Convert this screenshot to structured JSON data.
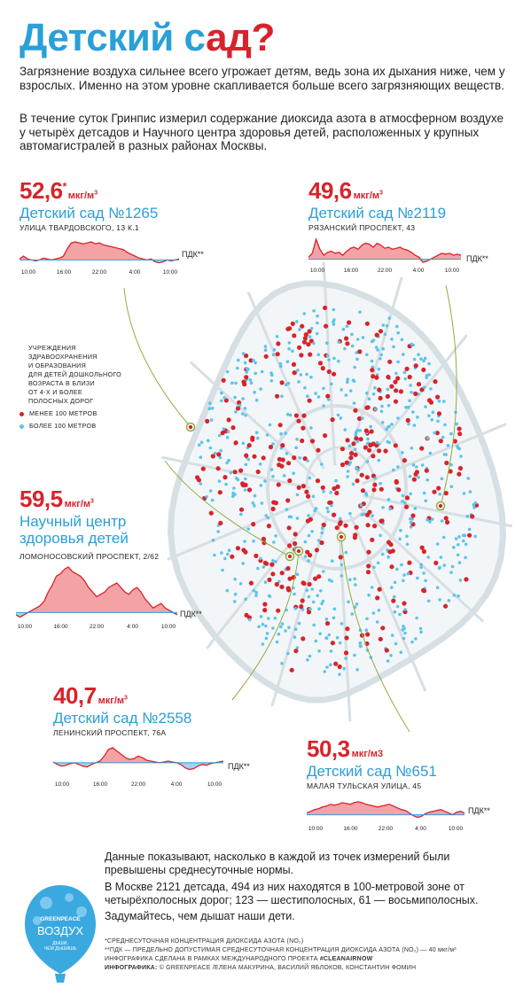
{
  "title": {
    "part1": "Детский с",
    "part2": "ад?"
  },
  "intro": {
    "p1": "Загрязнение воздуха сильнее всего угрожает детям, ведь зона их дыхания ниже, чем у взрослых. Именно на этом уровне скапливается больше всего загрязняющих веществ.",
    "p2": "В течение суток Гринпис измерил содержание диоксида азота в атмосферном воздухе у четырёх детсадов и Научного центра здоровья детей, расположенных у крупных автомагистралей в разных районах Москвы."
  },
  "unit": "мкг/м",
  "unit_sup": "3",
  "pdk_label": "ПДК**",
  "sites": [
    {
      "value": "52,6",
      "value_mark": "*",
      "name": "Детский сад №1265",
      "address": "УЛИЦА ТВАРДОВСКОГО, 13 К.1",
      "ticks": [
        "10:00",
        "16:00",
        "22:00",
        "4:00",
        "10:00"
      ],
      "series": [
        0.05,
        0.2,
        0.05,
        0.0,
        -0.05,
        0.0,
        0.1,
        0.05,
        0.0,
        0.05,
        0.1,
        0.2,
        0.6,
        0.9,
        0.95,
        0.9,
        0.85,
        0.9,
        0.95,
        0.85,
        0.9,
        0.8,
        0.75,
        0.7,
        0.65,
        0.6,
        0.55,
        0.4,
        0.3,
        0.2,
        0.1,
        0.05,
        0.0,
        0.05,
        -0.1,
        -0.15,
        -0.1,
        0.0,
        -0.05,
        0.0,
        0.05
      ]
    },
    {
      "value": "49,6",
      "value_mark": "",
      "name": "Детский сад №2119",
      "address": "РЯЗАНСКИЙ ПРОСПЕКТ, 43",
      "ticks": [
        "10:00",
        "16:00",
        "22:00",
        "4:00",
        "10:00"
      ],
      "series": [
        0.1,
        0.3,
        1.0,
        0.5,
        0.2,
        0.35,
        0.4,
        0.3,
        0.35,
        0.2,
        0.4,
        0.55,
        0.6,
        0.5,
        0.7,
        0.8,
        0.75,
        0.6,
        0.8,
        0.7,
        0.55,
        0.6,
        0.5,
        0.55,
        0.6,
        0.5,
        0.45,
        0.35,
        0.2,
        0.1,
        -0.15,
        -0.1,
        0.0,
        0.1,
        0.2,
        0.3,
        0.25,
        0.3,
        0.2,
        0.25,
        0.2
      ]
    },
    {
      "value": "59,5",
      "value_mark": "",
      "name_line1": "Научный центр",
      "name_line2": "здоровья детей",
      "address": "ЛОМОНОСОВСКИЙ ПРОСПЕКТ, 2/62",
      "ticks": [
        "10:00",
        "16:00",
        "22:00",
        "4:00",
        "10:00"
      ],
      "series": [
        -0.05,
        -0.1,
        -0.05,
        0.0,
        0.05,
        0.1,
        0.15,
        0.25,
        0.45,
        0.6,
        0.8,
        0.85,
        0.95,
        1.0,
        0.9,
        0.85,
        0.8,
        0.7,
        0.55,
        0.45,
        0.35,
        0.4,
        0.45,
        0.55,
        0.6,
        0.65,
        0.55,
        0.45,
        0.4,
        0.5,
        0.55,
        0.45,
        0.3,
        0.2,
        0.1,
        0.15,
        0.2,
        0.1,
        0.05,
        0.0,
        -0.05
      ]
    },
    {
      "value": "40,7",
      "value_mark": "",
      "name": "Детский сад №2558",
      "address": "ЛЕНИНСКИЙ ПРОСПЕКТ, 76А",
      "ticks": [
        "10:00",
        "16:00",
        "22:00",
        "4:00",
        "10:00"
      ],
      "series": [
        0.05,
        -0.1,
        -0.2,
        -0.15,
        -0.05,
        0.0,
        -0.1,
        -0.2,
        -0.25,
        -0.1,
        0.0,
        0.1,
        0.4,
        0.8,
        0.9,
        0.7,
        0.5,
        0.3,
        0.2,
        0.25,
        0.4,
        0.3,
        0.15,
        0.1,
        0.05,
        0.0,
        0.05,
        0.1,
        0.05,
        0.0,
        -0.1,
        -0.3,
        -0.4,
        -0.35,
        -0.2,
        -0.1,
        -0.15,
        -0.05,
        0.0,
        0.05,
        0.1
      ]
    },
    {
      "value": "50,3",
      "value_mark": "",
      "unit_override": "мкг/м3",
      "name": "Детский сад №651",
      "address": "МАЛАЯ ТУЛЬСКАЯ УЛИЦА, 45",
      "ticks": [
        "10:00",
        "16:00",
        "22:00",
        "4:00",
        "10:00"
      ],
      "series": [
        0.1,
        0.2,
        0.3,
        0.35,
        0.45,
        0.5,
        0.6,
        0.55,
        0.6,
        0.7,
        0.65,
        0.6,
        0.7,
        0.75,
        0.7,
        0.6,
        0.55,
        0.5,
        0.45,
        0.5,
        0.55,
        0.6,
        0.5,
        0.4,
        0.3,
        0.25,
        0.1,
        -0.05,
        -0.15,
        -0.1,
        0.05,
        0.15,
        0.2,
        0.25,
        0.3,
        0.2,
        0.1,
        0.0,
        0.15,
        0.2,
        0.1
      ]
    }
  ],
  "legend": {
    "heading_lines": [
      "УЧРЕЖДЕНИЯ",
      "ЗДРАВООХРАНЕНИЯ",
      "И ОБРАЗОВАНИЯ",
      "ДЛЯ ДЕТЕЙ ДОШКОЛЬНОГО",
      "ВОЗРАСТА В БЛИЗИ",
      "ОТ 4-Х И БОЛЕЕ",
      "ПОЛОСНЫХ ДОРОГ"
    ],
    "near": "МЕНЕЕ 100 МЕТРОВ",
    "far": "БОЛЕЕ 100 МЕТРОВ",
    "near_color": "#d8232a",
    "far_color": "#5bc4ec"
  },
  "bottom": {
    "p1": "Данные показывают, насколько в каждой из точек измерений были превышены среднесуточные нормы.",
    "p2": "В Москве 2121 детсада, 494 из них находятся в 100-метровой зоне от четырёхполосных дорог; 123 — шестиполосных, 61 — восьмиполосных.",
    "p3": "Задумайтесь, чем дышат наши дети."
  },
  "footnotes": {
    "f1": "*СРЕДНЕСУТОЧНАЯ КОНЦЕНТРАЦИЯ ДИОКСИДА АЗОТА (NO₂)",
    "f2": "**ПДК — ПРЕДЕЛЬНО ДОПУСТИМАЯ СРЕДНЕСУТОЧНАЯ КОНЦЕНТРАЦИЯ ДИОКСИДА АЗОТА (NO₂) — 40 мкг/м³",
    "f3_prefix": "ИНФОГРАФИКА СДЕЛАНА В РАМКАХ МЕЖДУНАРОДНОГО ПРОЕКТА ",
    "f3_tag": "#CLEANAIRNOW",
    "f4_label": "ИНФОГРАФИКА:",
    "f4_text": " © GREENPEACE /ЕЛЕНА МАКУРИНА, ВАСИЛИЙ ЯБЛОКОВ, КОНСТАНТИН ФОМИН"
  },
  "logo": {
    "brand": "GREENPEACE",
    "word": "ВОЗДУХ",
    "slogan1": "ДЫШИ,",
    "slogan2": "ЧЕМ ДЫШИШЬ",
    "color": "#3aa9e0"
  },
  "colors": {
    "red": "#d8232a",
    "blue": "#2a9fd8",
    "pink": "#f4a3a5",
    "lightblue": "#9fd6f0",
    "road": "#d6dfe4"
  }
}
